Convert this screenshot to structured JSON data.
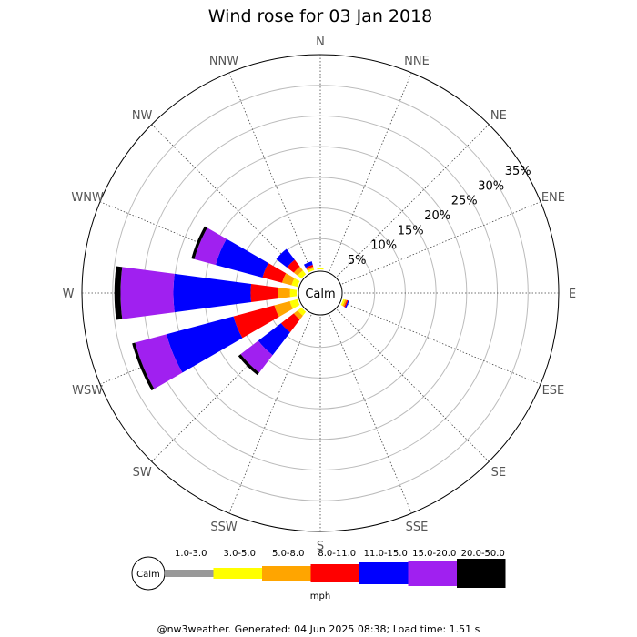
{
  "chart_data": {
    "type": "wind-rose",
    "title": "Wind rose for 03 Jan 2018",
    "directions": [
      "N",
      "NNE",
      "NE",
      "ENE",
      "E",
      "ESE",
      "SE",
      "SSE",
      "S",
      "SSW",
      "SW",
      "WSW",
      "W",
      "WNW",
      "NW",
      "NNW"
    ],
    "radial_ticks": [
      "5%",
      "10%",
      "15%",
      "20%",
      "25%",
      "30%",
      "35%"
    ],
    "radial_values": [
      5,
      10,
      15,
      20,
      25,
      30,
      35
    ],
    "radial_max": 35,
    "calm_label": "Calm",
    "speed_bins": [
      {
        "label": "1.0-3.0",
        "color": "#999999"
      },
      {
        "label": "3.0-5.0",
        "color": "#ffff00"
      },
      {
        "label": "5.0-8.0",
        "color": "#ffa500"
      },
      {
        "label": "8.0-11.0",
        "color": "#ff0000"
      },
      {
        "label": "11.0-15.0",
        "color": "#0000ff"
      },
      {
        "label": "15.0-20.0",
        "color": "#a020f0"
      },
      {
        "label": "20.0-50.0",
        "color": "#000000"
      }
    ],
    "units": "mph",
    "series": [
      {
        "direction": "N",
        "values": [
          0,
          0.2,
          0,
          0,
          0,
          0,
          0
        ]
      },
      {
        "direction": "NNE",
        "values": [
          0,
          0,
          0,
          0,
          0,
          0,
          0
        ]
      },
      {
        "direction": "NE",
        "values": [
          0,
          0,
          0,
          0,
          0,
          0,
          0
        ]
      },
      {
        "direction": "ENE",
        "values": [
          0,
          0,
          0,
          0,
          0,
          0,
          0
        ]
      },
      {
        "direction": "E",
        "values": [
          0,
          0,
          0,
          0,
          0,
          0,
          0
        ]
      },
      {
        "direction": "ESE",
        "values": [
          0,
          0.3,
          0.3,
          0.2,
          0.2,
          0,
          0
        ]
      },
      {
        "direction": "SE",
        "values": [
          0,
          0,
          0,
          0,
          0,
          0,
          0
        ]
      },
      {
        "direction": "SSE",
        "values": [
          0,
          0,
          0,
          0,
          0,
          0,
          0
        ]
      },
      {
        "direction": "S",
        "values": [
          0,
          0,
          0,
          0,
          0,
          0,
          0
        ]
      },
      {
        "direction": "SSW",
        "values": [
          0,
          0,
          0,
          0,
          0,
          0,
          0
        ]
      },
      {
        "direction": "SW",
        "values": [
          0,
          0.8,
          0.8,
          2.6,
          4.7,
          3.6,
          0.5
        ]
      },
      {
        "direction": "WSW",
        "values": [
          0,
          1.3,
          2.6,
          6.9,
          11.3,
          5.3,
          0.5
        ]
      },
      {
        "direction": "W",
        "values": [
          0,
          1.1,
          2.0,
          4.4,
          12.6,
          8.6,
          1.0
        ]
      },
      {
        "direction": "WNW",
        "values": [
          0,
          1.0,
          1.6,
          3.3,
          7.9,
          3.6,
          0.5
        ]
      },
      {
        "direction": "NW",
        "values": [
          0,
          0.8,
          0.8,
          1.4,
          2.2,
          0,
          0
        ]
      },
      {
        "direction": "NNW",
        "values": [
          0,
          0.3,
          0.3,
          0.3,
          0.6,
          0,
          0
        ]
      }
    ]
  },
  "footer": "@nw3weather. Generated: 04 Jun 2025 08:38; Load time: 1.51 s"
}
